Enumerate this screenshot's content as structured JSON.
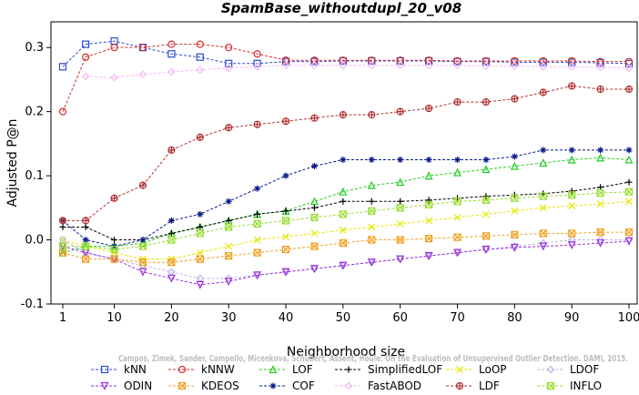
{
  "chart_data": {
    "type": "line",
    "title": "SpamBase_withoutdupl_20_v08",
    "xlabel": "Neighborhood size",
    "ylabel": "Adjusted P@n",
    "xlim": [
      1,
      100
    ],
    "ylim": [
      -0.1,
      0.34
    ],
    "xticks": [
      1,
      10,
      20,
      30,
      40,
      50,
      60,
      70,
      80,
      90,
      100
    ],
    "yticks": [
      -0.1,
      0.0,
      0.1,
      0.2,
      0.3
    ],
    "ytick_labels": [
      "-0.1",
      "0.0",
      "0.1",
      "0.2",
      "0.3"
    ],
    "legend_position": "bottom",
    "watermark": "Campos, Zimek, Sander, Campello, Micenkova, Schubert, Assent, Houle: On the Evaluation of Unsupervised Outlier Detection. DAMI, 2015.",
    "x": [
      1,
      5,
      10,
      15,
      20,
      25,
      30,
      35,
      40,
      45,
      50,
      55,
      60,
      65,
      70,
      75,
      80,
      85,
      90,
      95,
      100
    ],
    "series": [
      {
        "name": "kNN",
        "color": "#2b4bd6",
        "marker": "square",
        "values": [
          0.27,
          0.305,
          0.31,
          0.3,
          0.29,
          0.285,
          0.275,
          0.275,
          0.278,
          0.278,
          0.279,
          0.279,
          0.279,
          0.279,
          0.278,
          0.278,
          0.277,
          0.277,
          0.277,
          0.276,
          0.275
        ]
      },
      {
        "name": "kNNW",
        "color": "#d42a2a",
        "marker": "circle",
        "values": [
          0.2,
          0.285,
          0.3,
          0.3,
          0.305,
          0.305,
          0.3,
          0.29,
          0.28,
          0.28,
          0.28,
          0.28,
          0.28,
          0.28,
          0.279,
          0.279,
          0.279,
          0.279,
          0.279,
          0.278,
          0.278
        ]
      },
      {
        "name": "LOF",
        "color": "#22cc22",
        "marker": "triangle",
        "values": [
          -0.02,
          -0.01,
          -0.01,
          -0.005,
          0.01,
          0.02,
          0.03,
          0.04,
          0.045,
          0.06,
          0.075,
          0.085,
          0.09,
          0.1,
          0.105,
          0.11,
          0.115,
          0.12,
          0.125,
          0.128,
          0.125
        ]
      },
      {
        "name": "SimplifiedLOF",
        "color": "#000000",
        "marker": "plus",
        "values": [
          0.02,
          0.02,
          0.0,
          0.0,
          0.01,
          0.02,
          0.03,
          0.04,
          0.045,
          0.05,
          0.06,
          0.06,
          0.06,
          0.062,
          0.065,
          0.068,
          0.07,
          0.072,
          0.076,
          0.082,
          0.09
        ]
      },
      {
        "name": "LoOP",
        "color": "#e6e600",
        "marker": "cross",
        "values": [
          0.0,
          -0.01,
          -0.02,
          -0.03,
          -0.03,
          -0.02,
          -0.01,
          0.0,
          0.005,
          0.01,
          0.015,
          0.02,
          0.025,
          0.03,
          0.035,
          0.04,
          0.045,
          0.05,
          0.053,
          0.056,
          0.06
        ]
      },
      {
        "name": "LDOF",
        "color": "#b9b9e6",
        "marker": "diamond",
        "values": [
          0.0,
          -0.02,
          -0.03,
          -0.04,
          -0.05,
          -0.06,
          -0.06,
          -0.055,
          -0.05,
          -0.045,
          -0.04,
          -0.035,
          -0.03,
          -0.025,
          -0.02,
          -0.015,
          -0.01,
          -0.005,
          0.0,
          0.0,
          0.0
        ]
      },
      {
        "name": "ODIN",
        "color": "#9a2be0",
        "marker": "triangle-down",
        "values": [
          -0.01,
          -0.02,
          -0.03,
          -0.05,
          -0.06,
          -0.07,
          -0.065,
          -0.055,
          -0.05,
          -0.045,
          -0.04,
          -0.035,
          -0.03,
          -0.025,
          -0.02,
          -0.015,
          -0.012,
          -0.01,
          -0.008,
          -0.005,
          -0.002
        ]
      },
      {
        "name": "KDEOS",
        "color": "#f0a020",
        "marker": "square-x",
        "values": [
          -0.02,
          -0.03,
          -0.03,
          -0.035,
          -0.035,
          -0.03,
          -0.025,
          -0.02,
          -0.015,
          -0.01,
          -0.005,
          0.0,
          0.0,
          0.002,
          0.004,
          0.006,
          0.008,
          0.01,
          0.01,
          0.012,
          0.012
        ]
      },
      {
        "name": "COF",
        "color": "#0a1a8a",
        "marker": "star",
        "values": [
          0.03,
          0.0,
          -0.01,
          0.0,
          0.03,
          0.04,
          0.06,
          0.08,
          0.1,
          0.115,
          0.125,
          0.125,
          0.125,
          0.125,
          0.125,
          0.125,
          0.13,
          0.14,
          0.14,
          0.14,
          0.14
        ]
      },
      {
        "name": "FastABOD",
        "color": "#f4b9f4",
        "marker": "diamond",
        "values": [
          null,
          0.255,
          0.253,
          0.258,
          0.262,
          0.265,
          0.268,
          0.27,
          0.272,
          0.272,
          0.272,
          0.272,
          0.272,
          0.272,
          0.272,
          0.271,
          0.271,
          0.27,
          0.27,
          0.269,
          0.268
        ]
      },
      {
        "name": "LDF",
        "color": "#b03030",
        "marker": "circle-plus",
        "values": [
          0.03,
          0.03,
          0.065,
          0.085,
          0.14,
          0.16,
          0.175,
          0.18,
          0.185,
          0.19,
          0.195,
          0.195,
          0.2,
          0.205,
          0.215,
          0.215,
          0.22,
          0.23,
          0.24,
          0.235,
          0.235
        ]
      },
      {
        "name": "INFLO",
        "color": "#99dd33",
        "marker": "square-x",
        "values": [
          -0.01,
          -0.01,
          -0.015,
          -0.01,
          0.0,
          0.01,
          0.02,
          0.025,
          0.03,
          0.035,
          0.04,
          0.045,
          0.05,
          0.055,
          0.06,
          0.062,
          0.065,
          0.068,
          0.07,
          0.073,
          0.075
        ]
      }
    ]
  }
}
